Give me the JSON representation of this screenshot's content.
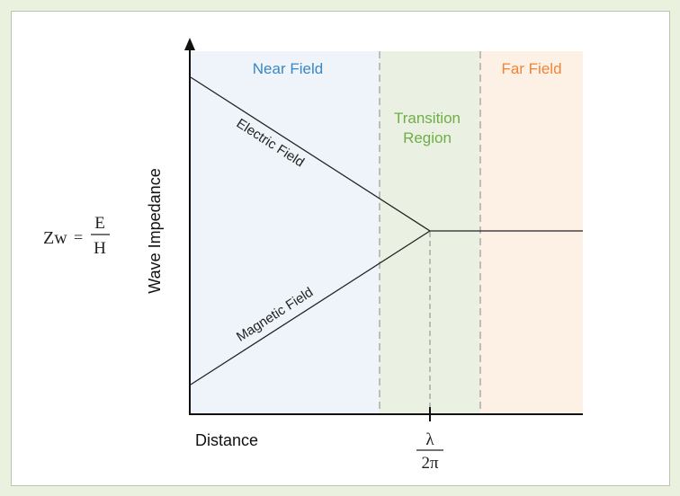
{
  "regions": {
    "near": {
      "label": "Near Field",
      "color": "#3a87c4",
      "fill": "#eef4fa"
    },
    "transition": {
      "line1": "Transition",
      "line2": "Region",
      "color": "#6fae47",
      "fill": "#eaf0e2"
    },
    "far": {
      "label": "Far Field",
      "color": "#f0843a",
      "fill": "#fdf0e4"
    }
  },
  "curves": {
    "electric": "Electric Field",
    "magnetic": "Magnetic Field"
  },
  "axes": {
    "x_label": "Distance",
    "y_label": "Wave Impedance"
  },
  "formula": {
    "lhs": "Zw",
    "equals": "=",
    "numerator": "E",
    "denominator": "H"
  },
  "marker": {
    "numerator": "λ",
    "denominator": "2π"
  }
}
